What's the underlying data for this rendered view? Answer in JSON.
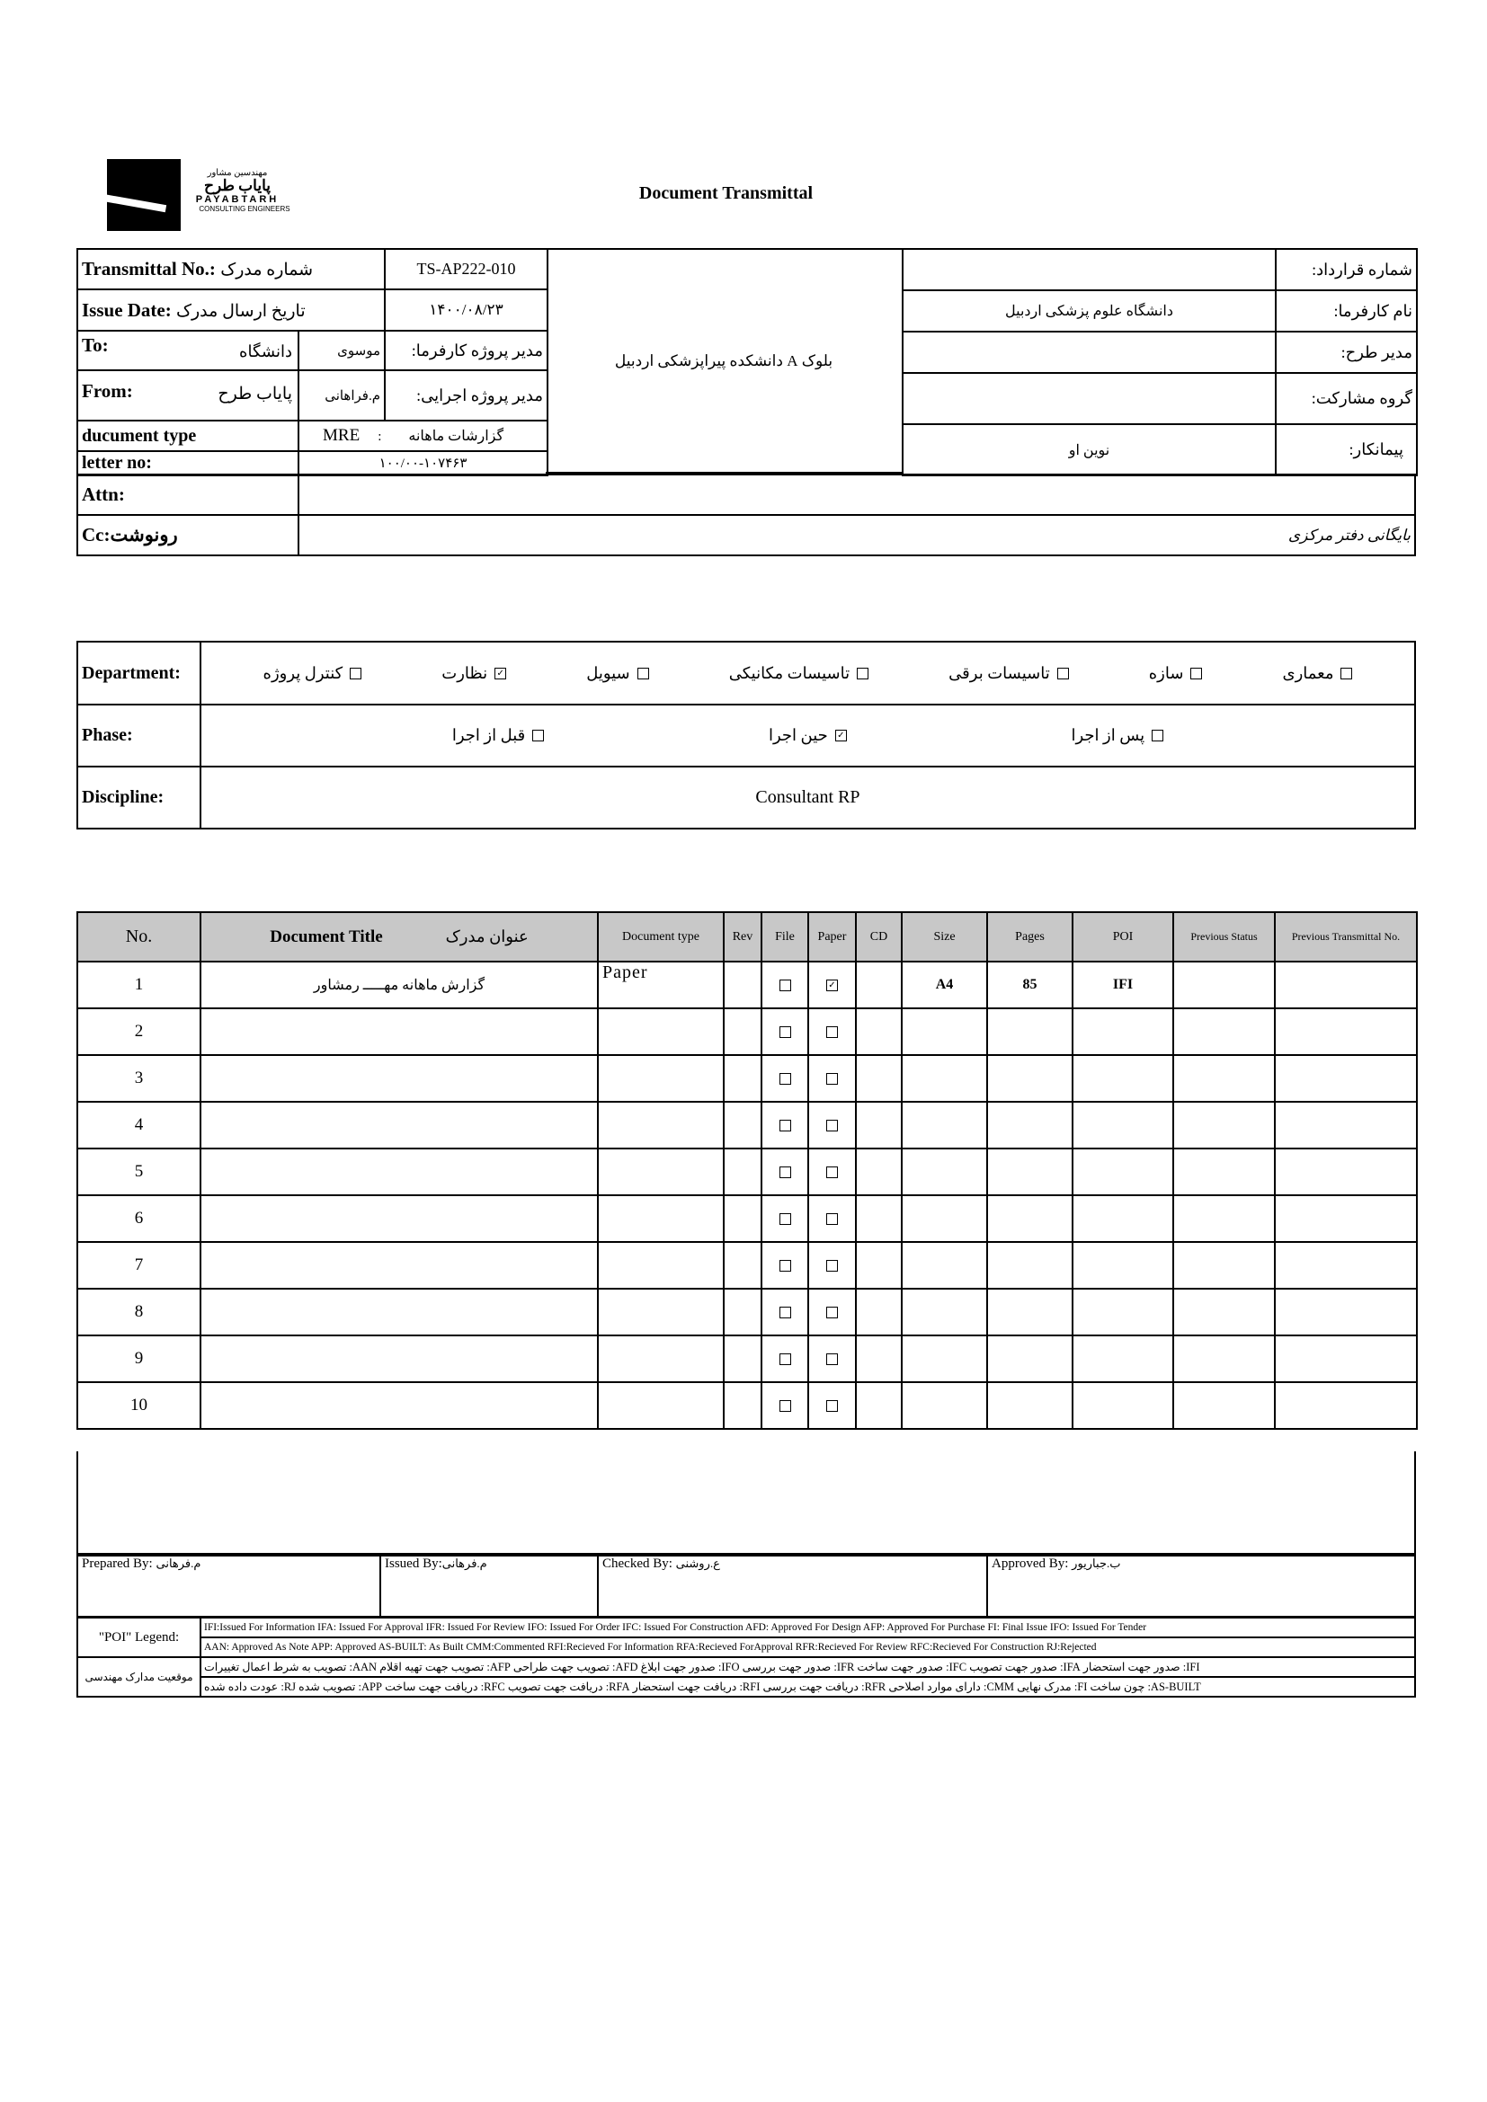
{
  "header": {
    "logo": {
      "top_fa": "مهندسین مشاور",
      "name_fa": "پایاب طرح",
      "name_en": "PAYABTARH",
      "tagline": "CONSULTING ENGINEERS"
    },
    "title": "Document Transmittal"
  },
  "info": {
    "transmittal_no_label": "Transmittal No.:",
    "transmittal_no_label_fa": "شماره مدرک",
    "transmittal_no": "TS-AP222-010",
    "issue_date_label": "Issue Date:",
    "issue_date_label_fa": "تاریخ ارسال مدرک",
    "issue_date": "۱۴۰۰/۰۸/۲۳",
    "to_label": "To:",
    "to_value": "دانشگاه",
    "to_person": "موسوی",
    "to_role": "مدیر پروژه کارفرما:",
    "from_label": "From:",
    "from_value": "پایاب طرح",
    "from_person": "م.فراهانی",
    "from_role": "مدیر پروژه اجرایی:",
    "doc_type_label": "ducument type",
    "doc_type_code": "MRE",
    "doc_type_sep": ":",
    "doc_type_value": "گزارشات ماهانه",
    "letter_no_label": "letter no:",
    "letter_no": "۱۰۰/۰۰-۱۰۷۴۶۳",
    "project": "بلوک A دانشکده پیراپزشکی اردبیل",
    "contract_no_label": "شماره قرارداد:",
    "contract_no": "",
    "client_label": "نام کارفرما:",
    "client": "دانشگاه علوم پزشکی اردبیل",
    "project_manager_label": "مدیر طرح:",
    "project_manager": "",
    "partnership_label": "گروه مشارکت:",
    "partnership": "",
    "contractor_label": "پیمانکار:",
    "contractor": "نوین او",
    "attn_label": "Attn:",
    "attn": "",
    "cc_label": "Cc:رونوشت",
    "cc": "بایگانی دفتر مرکزی"
  },
  "department": {
    "label": "Department:",
    "options": [
      {
        "label": "معماری",
        "checked": false
      },
      {
        "label": "سازه",
        "checked": false
      },
      {
        "label": "تاسیسات برقی",
        "checked": false
      },
      {
        "label": "تاسیسات مکانیکی",
        "checked": false
      },
      {
        "label": "سیویل",
        "checked": false
      },
      {
        "label": "نظارت",
        "checked": true
      },
      {
        "label": "کنترل پروژه",
        "checked": false
      }
    ]
  },
  "phase": {
    "label": "Phase:",
    "options": [
      {
        "label": "پس از اجرا",
        "checked": false
      },
      {
        "label": "حین اجرا",
        "checked": true
      },
      {
        "label": "قبل از اجرا",
        "checked": false
      }
    ]
  },
  "discipline": {
    "label": "Discipline:",
    "value": "Consultant RP"
  },
  "documents": {
    "headers": {
      "no": "No.",
      "title": "Document Title",
      "title_fa": "عنوان مدرک",
      "type": "Document type",
      "rev": "Rev",
      "file": "File",
      "paper": "Paper",
      "cd": "CD",
      "size": "Size",
      "pages": "Pages",
      "poi": "POI",
      "prev_status": "Previous Status",
      "prev_transmittal": "Previous Transmittal No."
    },
    "rows": [
      {
        "no": "1",
        "title": "گزارش ماهانه مهـــــ رمشاور",
        "type": "Paper",
        "rev": "",
        "file": false,
        "paper": true,
        "cd": "",
        "size": "A4",
        "pages": "85",
        "poi": "IFI",
        "prev_status": "",
        "prev_transmittal": ""
      },
      {
        "no": "2",
        "title": "",
        "type": "",
        "rev": "",
        "file": false,
        "paper": false,
        "cd": "",
        "size": "",
        "pages": "",
        "poi": "",
        "prev_status": "",
        "prev_transmittal": ""
      },
      {
        "no": "3",
        "title": "",
        "type": "",
        "rev": "",
        "file": false,
        "paper": false,
        "cd": "",
        "size": "",
        "pages": "",
        "poi": "",
        "prev_status": "",
        "prev_transmittal": ""
      },
      {
        "no": "4",
        "title": "",
        "type": "",
        "rev": "",
        "file": false,
        "paper": false,
        "cd": "",
        "size": "",
        "pages": "",
        "poi": "",
        "prev_status": "",
        "prev_transmittal": ""
      },
      {
        "no": "5",
        "title": "",
        "type": "",
        "rev": "",
        "file": false,
        "paper": false,
        "cd": "",
        "size": "",
        "pages": "",
        "poi": "",
        "prev_status": "",
        "prev_transmittal": ""
      },
      {
        "no": "6",
        "title": "",
        "type": "",
        "rev": "",
        "file": false,
        "paper": false,
        "cd": "",
        "size": "",
        "pages": "",
        "poi": "",
        "prev_status": "",
        "prev_transmittal": ""
      },
      {
        "no": "7",
        "title": "",
        "type": "",
        "rev": "",
        "file": false,
        "paper": false,
        "cd": "",
        "size": "",
        "pages": "",
        "poi": "",
        "prev_status": "",
        "prev_transmittal": ""
      },
      {
        "no": "8",
        "title": "",
        "type": "",
        "rev": "",
        "file": false,
        "paper": false,
        "cd": "",
        "size": "",
        "pages": "",
        "poi": "",
        "prev_status": "",
        "prev_transmittal": ""
      },
      {
        "no": "9",
        "title": "",
        "type": "",
        "rev": "",
        "file": false,
        "paper": false,
        "cd": "",
        "size": "",
        "pages": "",
        "poi": "",
        "prev_status": "",
        "prev_transmittal": ""
      },
      {
        "no": "10",
        "title": "",
        "type": "",
        "rev": "",
        "file": false,
        "paper": false,
        "cd": "",
        "size": "",
        "pages": "",
        "poi": "",
        "prev_status": "",
        "prev_transmittal": ""
      }
    ]
  },
  "signatures": {
    "prepared_label": "Prepared By:",
    "prepared": "م.فرهانی",
    "issued_label": "Issued By:",
    "issued": "م.فرهانی",
    "checked_label": "Checked By:",
    "checked": "ع.روشنی",
    "approved_label": "Approved By:",
    "approved": "ب.جباریور"
  },
  "legend": {
    "poi_label": "\"POI\" Legend:",
    "poi_line1": "IFI:Issued For Information  IFA: Issued For Approval  IFR: Issued For Review   IFO: Issued For Order  IFC: Issued For Construction AFD: Approved For Design AFP: Approved For Purchase  FI: Final Issue  IFO: Issued For Tender",
    "poi_line2": "AAN: Approved As Note  APP: Approved  AS-BUILT: As Built CMM:Commented  RFI:Recieved For Information   RFA:Recieved ForApproval   RFR:Recieved For Review  RFC:Recieved For Construction  RJ:Rejected",
    "status_label": "موقعیت مدارک مهندسی",
    "status_line1": "IFI: صدور جهت استحضار     IFA: صدور جهت تصویب   IFC: صدور جهت ساخت   IFR: صدور جهت بررسی   IFO: صدور جهت ابلاغ    AFD: تصویب جهت طراحی    AFP: تصویب جهت تهیه اقلام       AAN: تصویب به شرط اعمال تغییرات",
    "status_line2": "AS-BUILT: چون ساخت   FI: مدرک نهایی   CMM: دارای موارد اصلاحی     RFR: دریافت جهت بررسی   RFI: دریافت جهت استحضار   RFA: دریافت جهت تصویب    RFC: دریافت جهت ساخت    APP: تصویب شده      RJ: عودت داده شده"
  }
}
